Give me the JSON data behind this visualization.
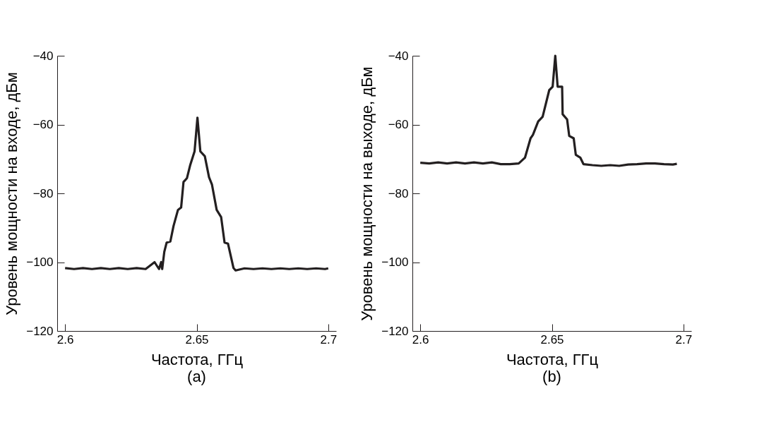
{
  "chart_data": [
    {
      "type": "line",
      "xlabel": "Частота, ГГц",
      "ylabel": "Уровень мощности на входе, дБм",
      "annotations": [
        "(a)"
      ],
      "xlim": [
        2.597,
        2.703
      ],
      "xticks": [
        2.6,
        2.65,
        2.7
      ],
      "ylim": [
        -120,
        -40
      ],
      "yticks": [
        -120,
        -100,
        -80,
        -60,
        -40
      ],
      "grid": false,
      "marker": "none",
      "line_style": "solid",
      "series": [
        {
          "color": "#231f20",
          "x": [
            2.6,
            2.6034,
            2.6068,
            2.6102,
            2.6136,
            2.617,
            2.6204,
            2.6238,
            2.6272,
            2.6306,
            2.634,
            2.6357,
            2.6365,
            2.6369,
            2.6377,
            2.6386,
            2.64,
            2.6412,
            2.6429,
            2.6441,
            2.645,
            2.6463,
            2.6475,
            2.6492,
            2.6503,
            2.6514,
            2.6531,
            2.6547,
            2.6558,
            2.6576,
            2.6593,
            2.6606,
            2.6619,
            2.664,
            2.6648,
            2.6682,
            2.6716,
            2.675,
            2.6784,
            2.6818,
            2.6852,
            2.6886,
            2.692,
            2.6954,
            2.6988,
            2.7
          ],
          "values": [
            -101.7,
            -102,
            -101.7,
            -102,
            -101.7,
            -102,
            -101.7,
            -102,
            -101.7,
            -102,
            -100,
            -102,
            -100,
            -102,
            -97,
            -94.3,
            -94,
            -89.5,
            -84.8,
            -84.1,
            -76.7,
            -75.6,
            -71.9,
            -67.8,
            -58,
            -67.8,
            -69.2,
            -75.3,
            -77.4,
            -84.8,
            -86.9,
            -94.3,
            -94.6,
            -101.7,
            -102.4,
            -101.8,
            -102,
            -101.8,
            -102,
            -101.8,
            -102,
            -101.8,
            -102,
            -101.8,
            -102,
            -101.8
          ]
        }
      ]
    },
    {
      "type": "line",
      "xlabel": "Частота, ГГц",
      "ylabel": "Уровень мощности на выходе, дБм",
      "annotations": [
        "(b)"
      ],
      "xlim": [
        2.597,
        2.703
      ],
      "xticks": [
        2.6,
        2.65,
        2.7
      ],
      "ylim": [
        -120,
        -40
      ],
      "yticks": [
        -120,
        -100,
        -80,
        -60,
        -40
      ],
      "grid": false,
      "marker": "none",
      "line_style": "solid",
      "series": [
        {
          "color": "#231f20",
          "x": [
            2.6,
            2.6034,
            2.6068,
            2.6102,
            2.6136,
            2.617,
            2.6204,
            2.6238,
            2.6272,
            2.6306,
            2.634,
            2.6374,
            2.6398,
            2.6419,
            2.6428,
            2.6448,
            2.6465,
            2.649,
            2.6503,
            2.6513,
            2.6522,
            2.6539,
            2.6541,
            2.6558,
            2.6566,
            2.6583,
            2.6591,
            2.6608,
            2.662,
            2.6654,
            2.6688,
            2.6722,
            2.6756,
            2.679,
            2.6824,
            2.6858,
            2.6892,
            2.6926,
            2.696,
            2.6975
          ],
          "values": [
            -71.1,
            -71.3,
            -71,
            -71.3,
            -71,
            -71.3,
            -71,
            -71.3,
            -71,
            -71.5,
            -71.5,
            -71.3,
            -69.6,
            -64,
            -63,
            -59.1,
            -57.7,
            -50,
            -49,
            -40,
            -49,
            -49,
            -57,
            -58.5,
            -63.3,
            -64,
            -68.8,
            -69.6,
            -71.5,
            -71.8,
            -72,
            -71.8,
            -72,
            -71.6,
            -71.5,
            -71.3,
            -71.3,
            -71.5,
            -71.6,
            -71.4
          ]
        }
      ]
    }
  ]
}
